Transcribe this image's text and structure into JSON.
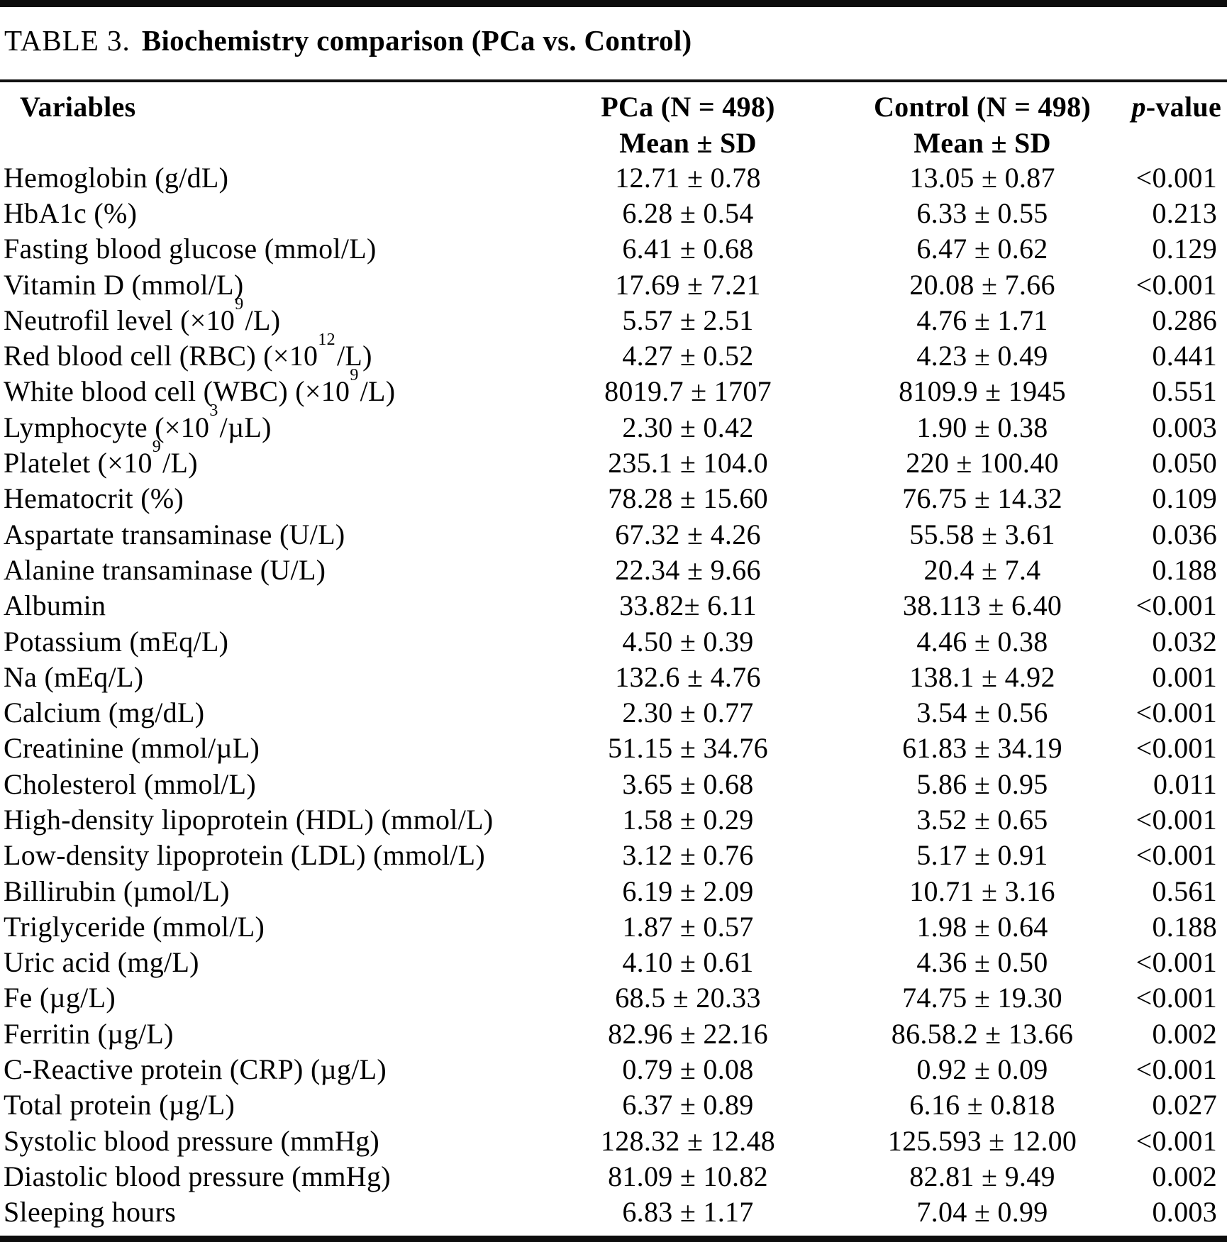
{
  "title": {
    "label": "TABLE 3.",
    "text": "Biochemistry comparison (PCa vs. Control)"
  },
  "table": {
    "headers": {
      "variables": "Variables",
      "pca_group": "PCa (N = 498)",
      "pca_sub": "Mean ± SD",
      "control_group": "Control (N = 498)",
      "control_sub": "Mean ± SD",
      "pvalue_italic": "p",
      "pvalue_rest": "-value"
    },
    "rows": [
      {
        "variable": {
          "pre": "Hemoglobin (g/dL)"
        },
        "pca": "12.71 ± 0.78",
        "control": "13.05 ± 0.87",
        "p": "<0.001"
      },
      {
        "variable": {
          "pre": "HbA1c (%)"
        },
        "pca": "6.28 ± 0.54",
        "control": "6.33 ± 0.55",
        "p": "0.213"
      },
      {
        "variable": {
          "pre": "Fasting blood glucose (mmol/L)"
        },
        "pca": "6.41 ± 0.68",
        "control": "6.47 ± 0.62",
        "p": "0.129"
      },
      {
        "variable": {
          "pre": "Vitamin D (mmol/L)"
        },
        "pca": "17.69 ± 7.21",
        "control": "20.08 ± 7.66",
        "p": "<0.001"
      },
      {
        "variable": {
          "pre": "Neutrofil level (×10",
          "sup": "9",
          "post": "/L)"
        },
        "pca": "5.57 ± 2.51",
        "control": "4.76 ± 1.71",
        "p": "0.286"
      },
      {
        "variable": {
          "pre": "Red blood cell (RBC) (×10",
          "sup": "12",
          "post": "/L)"
        },
        "pca": "4.27 ± 0.52",
        "control": "4.23 ± 0.49",
        "p": "0.441"
      },
      {
        "variable": {
          "pre": "White blood cell (WBC) (×10",
          "sup": "9",
          "post": "/L)"
        },
        "pca": "8019.7 ± 1707",
        "control": "8109.9 ± 1945",
        "p": "0.551"
      },
      {
        "variable": {
          "pre": "Lymphocyte (×10",
          "sup": "3",
          "post": "/µL)"
        },
        "pca": "2.30 ± 0.42",
        "control": "1.90 ± 0.38",
        "p": "0.003"
      },
      {
        "variable": {
          "pre": "Platelet (×10",
          "sup": "9",
          "post": "/L)"
        },
        "pca": "235.1 ± 104.0",
        "control": "220 ± 100.40",
        "p": "0.050"
      },
      {
        "variable": {
          "pre": "Hematocrit (%)"
        },
        "pca": "78.28 ± 15.60",
        "control": "76.75 ± 14.32",
        "p": "0.109"
      },
      {
        "variable": {
          "pre": "Aspartate transaminase (U/L)"
        },
        "pca": "67.32 ± 4.26",
        "control": "55.58 ± 3.61",
        "p": "0.036"
      },
      {
        "variable": {
          "pre": "Alanine transaminase (U/L)"
        },
        "pca": "22.34 ± 9.66",
        "control": "20.4 ± 7.4",
        "p": "0.188"
      },
      {
        "variable": {
          "pre": "Albumin"
        },
        "pca": "33.82± 6.11",
        "control": "38.113 ± 6.40",
        "p": "<0.001"
      },
      {
        "variable": {
          "pre": "Potassium (mEq/L)"
        },
        "pca": "4.50 ± 0.39",
        "control": "4.46 ± 0.38",
        "p": "0.032"
      },
      {
        "variable": {
          "pre": "Na (mEq/L)"
        },
        "pca": "132.6 ± 4.76",
        "control": "138.1 ± 4.92",
        "p": "0.001"
      },
      {
        "variable": {
          "pre": "Calcium (mg/dL)"
        },
        "pca": "2.30 ± 0.77",
        "control": "3.54 ± 0.56",
        "p": "<0.001"
      },
      {
        "variable": {
          "pre": "Creatinine (mmol/µL)"
        },
        "pca": "51.15 ± 34.76",
        "control": "61.83 ± 34.19",
        "p": "<0.001"
      },
      {
        "variable": {
          "pre": "Cholesterol (mmol/L)"
        },
        "pca": "3.65 ± 0.68",
        "control": "5.86 ± 0.95",
        "p": "0.011"
      },
      {
        "variable": {
          "pre": "High-density lipoprotein (HDL) (mmol/L)"
        },
        "pca": "1.58 ± 0.29",
        "control": "3.52 ± 0.65",
        "p": "<0.001"
      },
      {
        "variable": {
          "pre": "Low-density lipoprotein (LDL) (mmol/L)"
        },
        "pca": "3.12 ± 0.76",
        "control": "5.17 ± 0.91",
        "p": "<0.001"
      },
      {
        "variable": {
          "pre": "Billirubin (µmol/L)"
        },
        "pca": "6.19 ± 2.09",
        "control": "10.71 ± 3.16",
        "p": "0.561"
      },
      {
        "variable": {
          "pre": "Triglyceride (mmol/L)"
        },
        "pca": "1.87 ± 0.57",
        "control": "1.98 ± 0.64",
        "p": "0.188"
      },
      {
        "variable": {
          "pre": "Uric acid (mg/L)"
        },
        "pca": "4.10 ± 0.61",
        "control": "4.36 ± 0.50",
        "p": "<0.001"
      },
      {
        "variable": {
          "pre": "Fe (µg/L)"
        },
        "pca": "68.5 ± 20.33",
        "control": "74.75 ± 19.30",
        "p": "<0.001"
      },
      {
        "variable": {
          "pre": "Ferritin (µg/L)"
        },
        "pca": "82.96 ± 22.16",
        "control": "86.58.2 ± 13.66",
        "p": "0.002"
      },
      {
        "variable": {
          "pre": "C-Reactive protein (CRP) (µg/L)"
        },
        "pca": "0.79 ± 0.08",
        "control": "0.92 ± 0.09",
        "p": "<0.001"
      },
      {
        "variable": {
          "pre": "Total protein (µg/L)"
        },
        "pca": "6.37 ± 0.89",
        "control": "6.16 ± 0.818",
        "p": "0.027"
      },
      {
        "variable": {
          "pre": "Systolic blood pressure (mmHg)"
        },
        "pca": "128.32 ± 12.48",
        "control": "125.593 ± 12.00",
        "p": "<0.001"
      },
      {
        "variable": {
          "pre": "Diastolic blood pressure (mmHg)"
        },
        "pca": "81.09 ± 10.82",
        "control": "82.81 ± 9.49",
        "p": "0.002"
      },
      {
        "variable": {
          "pre": "Sleeping hours"
        },
        "pca": "6.83 ± 1.17",
        "control": "7.04 ± 0.99",
        "p": "0.003"
      }
    ]
  }
}
